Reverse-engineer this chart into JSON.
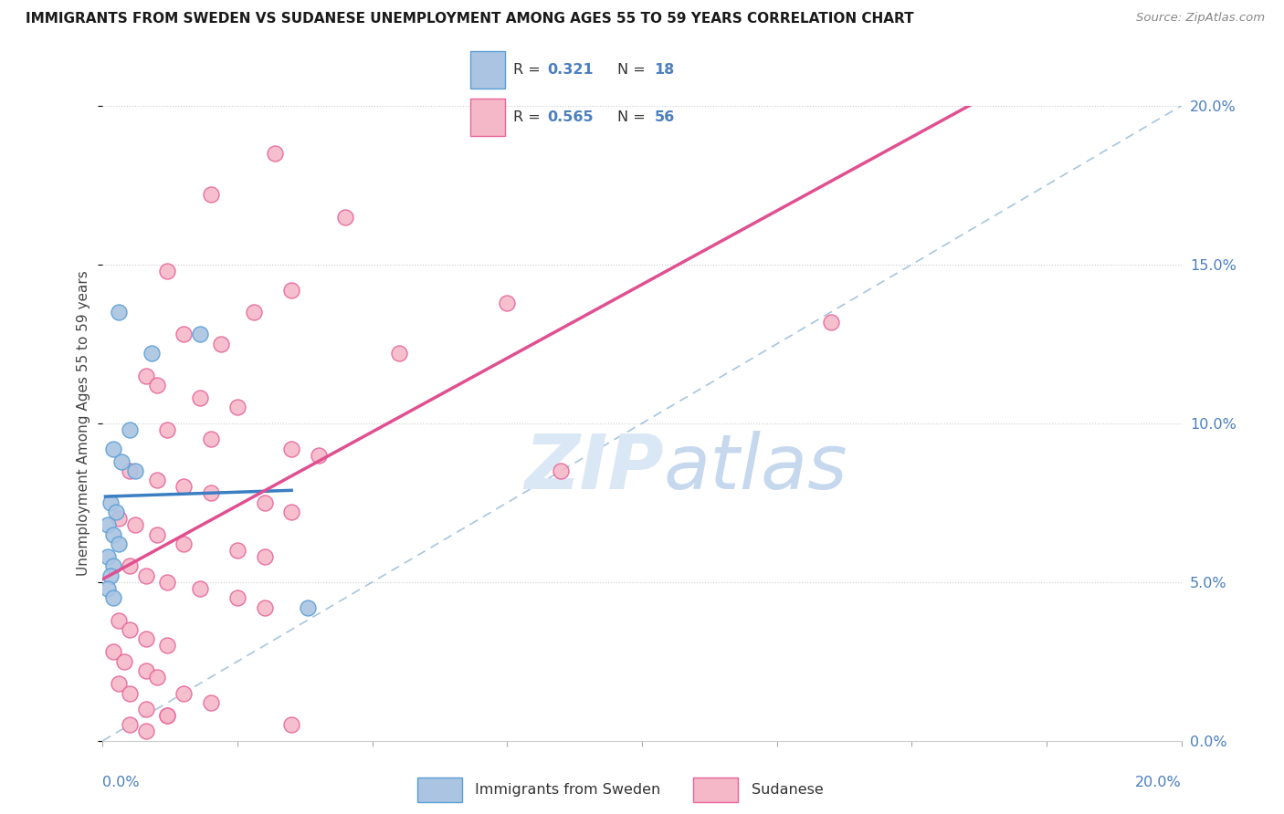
{
  "title": "IMMIGRANTS FROM SWEDEN VS SUDANESE UNEMPLOYMENT AMONG AGES 55 TO 59 YEARS CORRELATION CHART",
  "source": "Source: ZipAtlas.com",
  "ylabel": "Unemployment Among Ages 55 to 59 years",
  "ytick_labels": [
    "0.0%",
    "5.0%",
    "10.0%",
    "15.0%",
    "20.0%"
  ],
  "ytick_vals": [
    0,
    5,
    10,
    15,
    20
  ],
  "xlim": [
    0,
    20
  ],
  "ylim": [
    0,
    20
  ],
  "legend_sweden_r": "0.321",
  "legend_sweden_n": "18",
  "legend_sudanese_r": "0.565",
  "legend_sudanese_n": "56",
  "sweden_face_color": "#aac4e2",
  "sudanese_face_color": "#f5b8c8",
  "sweden_edge_color": "#5a9fd4",
  "sudanese_edge_color": "#e8649a",
  "sweden_line_color": "#3a7fc1",
  "sudanese_line_color": "#e05090",
  "diagonal_color": "#90b8d8",
  "watermark_zip": "ZIP",
  "watermark_atlas": "atlas",
  "sweden_points": [
    [
      0.3,
      13.5
    ],
    [
      1.8,
      12.8
    ],
    [
      0.9,
      12.2
    ],
    [
      0.5,
      9.8
    ],
    [
      0.2,
      9.2
    ],
    [
      0.35,
      8.8
    ],
    [
      0.6,
      8.5
    ],
    [
      0.15,
      7.5
    ],
    [
      0.25,
      7.2
    ],
    [
      0.1,
      6.8
    ],
    [
      0.2,
      6.5
    ],
    [
      0.3,
      6.2
    ],
    [
      0.1,
      5.8
    ],
    [
      0.2,
      5.5
    ],
    [
      0.15,
      5.2
    ],
    [
      0.1,
      4.8
    ],
    [
      0.2,
      4.5
    ],
    [
      3.8,
      4.2
    ]
  ],
  "sudanese_points": [
    [
      3.2,
      18.5
    ],
    [
      2.0,
      17.2
    ],
    [
      4.5,
      16.5
    ],
    [
      1.2,
      14.8
    ],
    [
      3.5,
      14.2
    ],
    [
      2.8,
      13.5
    ],
    [
      1.5,
      12.8
    ],
    [
      2.2,
      12.5
    ],
    [
      5.5,
      12.2
    ],
    [
      0.8,
      11.5
    ],
    [
      1.0,
      11.2
    ],
    [
      1.8,
      10.8
    ],
    [
      2.5,
      10.5
    ],
    [
      7.5,
      13.8
    ],
    [
      1.2,
      9.8
    ],
    [
      2.0,
      9.5
    ],
    [
      3.5,
      9.2
    ],
    [
      4.0,
      9.0
    ],
    [
      0.5,
      8.5
    ],
    [
      1.0,
      8.2
    ],
    [
      1.5,
      8.0
    ],
    [
      2.0,
      7.8
    ],
    [
      3.0,
      7.5
    ],
    [
      3.5,
      7.2
    ],
    [
      0.3,
      7.0
    ],
    [
      0.6,
      6.8
    ],
    [
      1.0,
      6.5
    ],
    [
      1.5,
      6.2
    ],
    [
      2.5,
      6.0
    ],
    [
      3.0,
      5.8
    ],
    [
      0.5,
      5.5
    ],
    [
      0.8,
      5.2
    ],
    [
      1.2,
      5.0
    ],
    [
      1.8,
      4.8
    ],
    [
      2.5,
      4.5
    ],
    [
      3.0,
      4.2
    ],
    [
      0.3,
      3.8
    ],
    [
      0.5,
      3.5
    ],
    [
      0.8,
      3.2
    ],
    [
      1.2,
      3.0
    ],
    [
      0.2,
      2.8
    ],
    [
      0.4,
      2.5
    ],
    [
      0.8,
      2.2
    ],
    [
      1.0,
      2.0
    ],
    [
      0.3,
      1.8
    ],
    [
      0.5,
      1.5
    ],
    [
      1.5,
      1.5
    ],
    [
      2.0,
      1.2
    ],
    [
      0.8,
      1.0
    ],
    [
      1.2,
      0.8
    ],
    [
      0.5,
      0.5
    ],
    [
      0.8,
      0.3
    ],
    [
      1.2,
      0.8
    ],
    [
      3.5,
      0.5
    ],
    [
      13.5,
      13.2
    ],
    [
      8.5,
      8.5
    ]
  ]
}
